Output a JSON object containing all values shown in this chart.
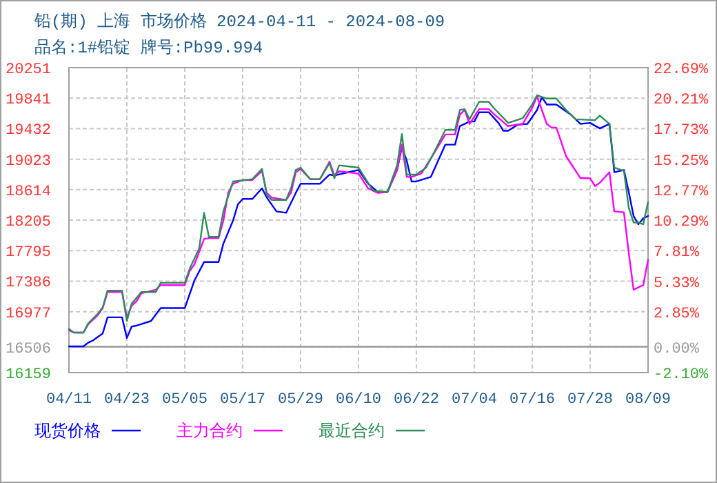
{
  "chart_data": {
    "type": "line",
    "title": "铅(期) 上海 市场价格 2024-04-11 - 2024-08-09",
    "subtitle": "品名:1#铅锭 牌号:Pb99.994",
    "xlim": [
      "2024-04-11",
      "2024-08-09"
    ],
    "xticks": [
      {
        "value": "2024-04-11",
        "label": "04/11"
      },
      {
        "value": "2024-04-23",
        "label": "04/23"
      },
      {
        "value": "2024-05-05",
        "label": "05/05"
      },
      {
        "value": "2024-05-17",
        "label": "05/17"
      },
      {
        "value": "2024-05-29",
        "label": "05/29"
      },
      {
        "value": "2024-06-10",
        "label": "06/10"
      },
      {
        "value": "2024-06-22",
        "label": "06/22"
      },
      {
        "value": "2024-07-04",
        "label": "07/04"
      },
      {
        "value": "2024-07-16",
        "label": "07/16"
      },
      {
        "value": "2024-07-28",
        "label": "07/28"
      },
      {
        "value": "2024-08-09",
        "label": "08/09"
      }
    ],
    "ylim": [
      16159,
      20251
    ],
    "yticks": [
      16159,
      16506,
      16977,
      17386,
      17795,
      18205,
      18614,
      19023,
      19432,
      19841,
      20251
    ],
    "y2lim": [
      -2.1,
      22.69
    ],
    "y2ticks": [
      {
        "value": -2.1,
        "label": "-2.10%"
      },
      {
        "value": 0,
        "label": "0.00%"
      },
      {
        "value": 2.85,
        "label": "2.85%"
      },
      {
        "value": 5.33,
        "label": "5.33%"
      },
      {
        "value": 7.81,
        "label": "7.81%"
      },
      {
        "value": 10.29,
        "label": "10.29%"
      },
      {
        "value": 12.77,
        "label": "12.77%"
      },
      {
        "value": 15.25,
        "label": "15.25%"
      },
      {
        "value": 17.73,
        "label": "17.73%"
      },
      {
        "value": 20.21,
        "label": "20.21%"
      },
      {
        "value": 22.69,
        "label": "22.69%"
      }
    ],
    "grid": true,
    "legend": "bottom",
    "line_style": "solid",
    "marker": "none",
    "ref_lines": [
      {
        "axis": "y",
        "value": 16506,
        "color": "#999999"
      }
    ],
    "series": [
      {
        "name": "现货价格",
        "color": "#0000ff",
        "x": [
          "2024-04-11",
          "2024-04-14",
          "2024-04-15",
          "2024-04-16",
          "2024-04-18",
          "2024-04-19",
          "2024-04-22",
          "2024-04-23",
          "2024-04-24",
          "2024-04-25",
          "2024-04-28",
          "2024-04-30",
          "2024-05-05",
          "2024-05-07",
          "2024-05-09",
          "2024-05-12",
          "2024-05-13",
          "2024-05-15",
          "2024-05-16",
          "2024-05-17",
          "2024-05-19",
          "2024-05-21",
          "2024-05-22",
          "2024-05-24",
          "2024-05-26",
          "2024-05-28",
          "2024-05-29",
          "2024-06-02",
          "2024-06-04",
          "2024-06-05",
          "2024-06-10",
          "2024-06-12",
          "2024-06-14",
          "2024-06-16",
          "2024-06-18",
          "2024-06-19",
          "2024-06-20",
          "2024-06-21",
          "2024-06-22",
          "2024-06-25",
          "2024-06-28",
          "2024-06-30",
          "2024-07-01",
          "2024-07-03",
          "2024-07-04",
          "2024-07-05",
          "2024-07-07",
          "2024-07-09",
          "2024-07-10",
          "2024-07-11",
          "2024-07-13",
          "2024-07-15",
          "2024-07-17",
          "2024-07-18",
          "2024-07-19",
          "2024-07-21",
          "2024-07-24",
          "2024-07-26",
          "2024-07-28",
          "2024-07-30",
          "2024-08-01",
          "2024-08-02",
          "2024-08-04",
          "2024-08-05",
          "2024-08-06",
          "2024-08-07",
          "2024-08-08",
          "2024-08-09"
        ],
        "values": [
          16511,
          16511,
          16561,
          16592,
          16685,
          16901,
          16901,
          16623,
          16777,
          16789,
          16851,
          17024,
          17024,
          17395,
          17642,
          17642,
          17889,
          18198,
          18415,
          18489,
          18489,
          18631,
          18507,
          18322,
          18303,
          18569,
          18693,
          18693,
          18816,
          18804,
          18878,
          18693,
          18582,
          18582,
          18878,
          19187,
          19002,
          18724,
          18724,
          18785,
          19218,
          19218,
          19466,
          19528,
          19528,
          19651,
          19651,
          19509,
          19404,
          19404,
          19484,
          19496,
          19682,
          19855,
          19756,
          19756,
          19620,
          19496,
          19509,
          19435,
          19496,
          18847,
          18878,
          18582,
          18260,
          18149,
          18229,
          18260
        ]
      },
      {
        "name": "主力合约",
        "color": "#ff00ff",
        "x": [
          "2024-04-11",
          "2024-04-12",
          "2024-04-14",
          "2024-04-15",
          "2024-04-17",
          "2024-04-18",
          "2024-04-19",
          "2024-04-22",
          "2024-04-23",
          "2024-04-24",
          "2024-04-25",
          "2024-04-26",
          "2024-04-29",
          "2024-04-30",
          "2024-05-05",
          "2024-05-06",
          "2024-05-07",
          "2024-05-09",
          "2024-05-10",
          "2024-05-12",
          "2024-05-13",
          "2024-05-14",
          "2024-05-15",
          "2024-05-17",
          "2024-05-19",
          "2024-05-21",
          "2024-05-22",
          "2024-05-23",
          "2024-05-26",
          "2024-05-27",
          "2024-05-28",
          "2024-05-29",
          "2024-05-31",
          "2024-06-02",
          "2024-06-04",
          "2024-06-05",
          "2024-06-06",
          "2024-06-10",
          "2024-06-12",
          "2024-06-14",
          "2024-06-16",
          "2024-06-18",
          "2024-06-19",
          "2024-06-20",
          "2024-06-21",
          "2024-06-23",
          "2024-06-25",
          "2024-06-28",
          "2024-06-30",
          "2024-07-01",
          "2024-07-02",
          "2024-07-03",
          "2024-07-05",
          "2024-07-07",
          "2024-07-08",
          "2024-07-11",
          "2024-07-14",
          "2024-07-16",
          "2024-07-17",
          "2024-07-19",
          "2024-07-20",
          "2024-07-21",
          "2024-07-23",
          "2024-07-26",
          "2024-07-28",
          "2024-07-29",
          "2024-07-30",
          "2024-08-01",
          "2024-08-02",
          "2024-08-04",
          "2024-08-05",
          "2024-08-06",
          "2024-08-07",
          "2024-08-08",
          "2024-08-09"
        ],
        "values": [
          16727,
          16696,
          16696,
          16807,
          16931,
          17024,
          17240,
          17240,
          16901,
          17055,
          17117,
          17222,
          17271,
          17333,
          17333,
          17519,
          17611,
          17951,
          17963,
          17963,
          18198,
          18569,
          18693,
          18742,
          18742,
          18866,
          18569,
          18507,
          18476,
          18569,
          18847,
          18891,
          18755,
          18755,
          18989,
          18804,
          18860,
          18829,
          18631,
          18569,
          18582,
          18878,
          19218,
          18785,
          18785,
          18829,
          19033,
          19354,
          19354,
          19620,
          19682,
          19496,
          19694,
          19694,
          19632,
          19466,
          19496,
          19712,
          19867,
          19496,
          19447,
          19447,
          19064,
          18767,
          18767,
          18662,
          18705,
          18847,
          18322,
          18310,
          17766,
          17271,
          17302,
          17333,
          17673
        ]
      },
      {
        "name": "最近合约",
        "color": "#2e8b57",
        "x": [
          "2024-04-11",
          "2024-04-12",
          "2024-04-14",
          "2024-04-15",
          "2024-04-17",
          "2024-04-18",
          "2024-04-19",
          "2024-04-22",
          "2024-04-23",
          "2024-04-24",
          "2024-04-25",
          "2024-04-26",
          "2024-04-29",
          "2024-04-30",
          "2024-05-05",
          "2024-05-06",
          "2024-05-08",
          "2024-05-09",
          "2024-05-10",
          "2024-05-12",
          "2024-05-13",
          "2024-05-15",
          "2024-05-19",
          "2024-05-21",
          "2024-05-22",
          "2024-05-23",
          "2024-05-26",
          "2024-05-27",
          "2024-05-28",
          "2024-05-29",
          "2024-05-31",
          "2024-06-02",
          "2024-06-04",
          "2024-06-05",
          "2024-06-06",
          "2024-06-10",
          "2024-06-13",
          "2024-06-16",
          "2024-06-18",
          "2024-06-19",
          "2024-06-20",
          "2024-06-22",
          "2024-06-24",
          "2024-06-26",
          "2024-06-28",
          "2024-06-30",
          "2024-07-01",
          "2024-07-02",
          "2024-07-03",
          "2024-07-05",
          "2024-07-07",
          "2024-07-08",
          "2024-07-11",
          "2024-07-14",
          "2024-07-16",
          "2024-07-17",
          "2024-07-19",
          "2024-07-21",
          "2024-07-23",
          "2024-07-25",
          "2024-07-29",
          "2024-07-30",
          "2024-08-01",
          "2024-08-02",
          "2024-08-04",
          "2024-08-05",
          "2024-08-06",
          "2024-08-07",
          "2024-08-08",
          "2024-08-09"
        ],
        "values": [
          16746,
          16696,
          16696,
          16820,
          16950,
          17036,
          17259,
          17259,
          16851,
          17086,
          17160,
          17240,
          17240,
          17364,
          17364,
          17549,
          17827,
          18303,
          17981,
          17981,
          18322,
          18724,
          18755,
          18891,
          18538,
          18476,
          18476,
          18631,
          18878,
          18909,
          18755,
          18755,
          18971,
          18767,
          18940,
          18909,
          18600,
          18582,
          18940,
          19360,
          18816,
          18816,
          18909,
          19156,
          19416,
          19416,
          19682,
          19694,
          19558,
          19793,
          19793,
          19712,
          19509,
          19571,
          19756,
          19879,
          19836,
          19836,
          19682,
          19558,
          19546,
          19607,
          19496,
          18909,
          18866,
          18371,
          18173,
          18173,
          18149,
          18445
        ]
      }
    ]
  }
}
